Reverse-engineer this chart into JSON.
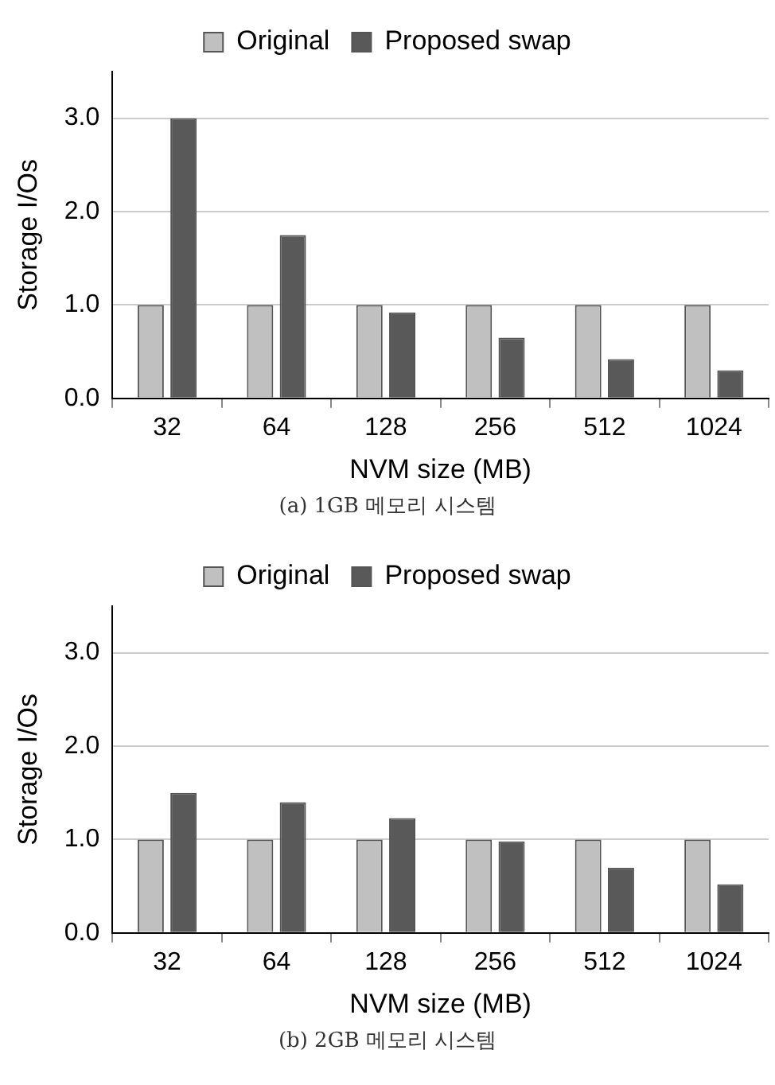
{
  "chart_data": [
    {
      "type": "bar",
      "categories": [
        "32",
        "64",
        "128",
        "256",
        "512",
        "1024"
      ],
      "xlabel": "NVM size (MB)",
      "ylabel": "Storage I/Os",
      "series": [
        {
          "name": "Original",
          "color": "#c0c0c0",
          "values": [
            1.0,
            1.0,
            1.0,
            1.0,
            1.0,
            1.0
          ]
        },
        {
          "name": "Proposed swap",
          "color": "#595959",
          "values": [
            3.0,
            1.75,
            0.92,
            0.65,
            0.42,
            0.3
          ]
        }
      ],
      "ylim": [
        0,
        3.5
      ],
      "yticks": [
        {
          "value": 0,
          "label": "0.0"
        },
        {
          "value": 1,
          "label": "1.0"
        },
        {
          "value": 2,
          "label": "2.0"
        },
        {
          "value": 3,
          "label": "3.0"
        }
      ],
      "grid": "y",
      "legend": "top",
      "annotations": [
        "(a) 1GB 메모리 시스템"
      ]
    },
    {
      "type": "bar",
      "categories": [
        "32",
        "64",
        "128",
        "256",
        "512",
        "1024"
      ],
      "xlabel": "NVM size (MB)",
      "ylabel": "Storage I/Os",
      "series": [
        {
          "name": "Original",
          "color": "#c0c0c0",
          "values": [
            1.0,
            1.0,
            1.0,
            1.0,
            1.0,
            1.0
          ]
        },
        {
          "name": "Proposed swap",
          "color": "#595959",
          "values": [
            1.5,
            1.4,
            1.23,
            0.98,
            0.7,
            0.52
          ]
        }
      ],
      "ylim": [
        0,
        3.5
      ],
      "yticks": [
        {
          "value": 0,
          "label": "0.0"
        },
        {
          "value": 1,
          "label": "1.0"
        },
        {
          "value": 2,
          "label": "2.0"
        },
        {
          "value": 3,
          "label": "3.0"
        }
      ],
      "grid": "y",
      "legend": "top",
      "annotations": [
        "(b) 2GB 메모리 시스템"
      ]
    }
  ]
}
